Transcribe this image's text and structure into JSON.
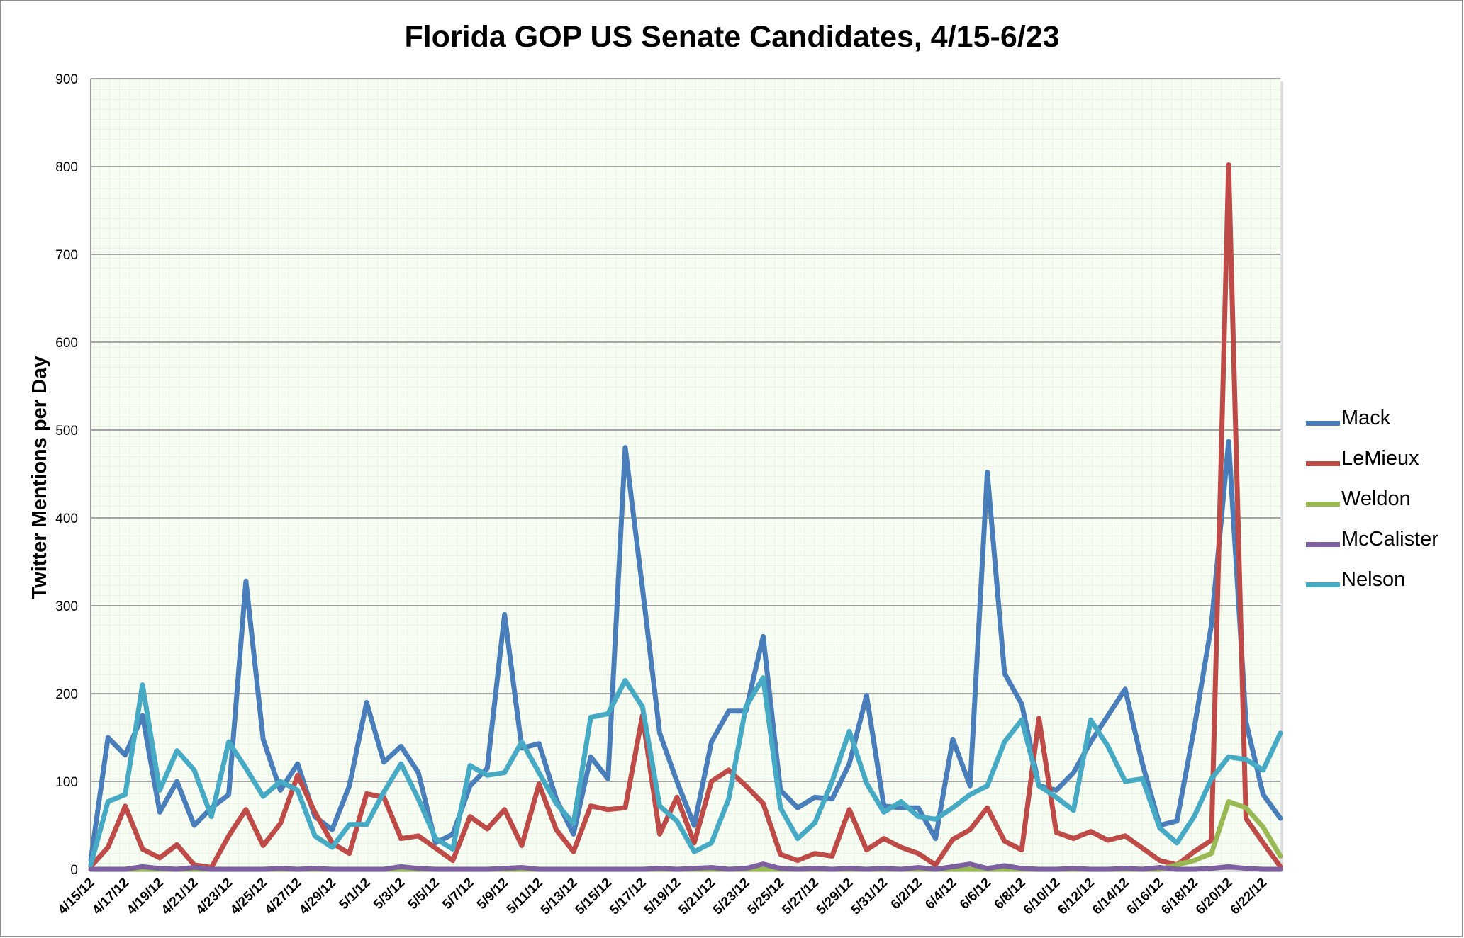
{
  "chart_data": {
    "type": "line",
    "title": "Florida GOP US Senate Candidates, 4/15-6/23",
    "xlabel": "",
    "ylabel": "Twitter Mentions per Day",
    "ylim": [
      0,
      900
    ],
    "yticks": [
      0,
      100,
      200,
      300,
      400,
      500,
      600,
      700,
      800,
      900
    ],
    "x_tick_labels": [
      "4/15/12",
      "4/17/12",
      "4/19/12",
      "4/21/12",
      "4/23/12",
      "4/25/12",
      "4/27/12",
      "4/29/12",
      "5/1/12",
      "5/3/12",
      "5/5/12",
      "5/7/12",
      "5/9/12",
      "5/11/12",
      "5/13/12",
      "5/15/12",
      "5/17/12",
      "5/19/12",
      "5/21/12",
      "5/23/12",
      "5/25/12",
      "5/27/12",
      "5/29/12",
      "5/31/12",
      "6/2/12",
      "6/4/12",
      "6/6/12",
      "6/8/12",
      "6/10/12",
      "6/12/12",
      "6/14/12",
      "6/16/12",
      "6/18/12",
      "6/20/12",
      "6/22/12"
    ],
    "x": [
      "4/15/12",
      "4/16/12",
      "4/17/12",
      "4/18/12",
      "4/19/12",
      "4/20/12",
      "4/21/12",
      "4/22/12",
      "4/23/12",
      "4/24/12",
      "4/25/12",
      "4/26/12",
      "4/27/12",
      "4/28/12",
      "4/29/12",
      "4/30/12",
      "5/1/12",
      "5/2/12",
      "5/3/12",
      "5/4/12",
      "5/5/12",
      "5/6/12",
      "5/7/12",
      "5/8/12",
      "5/9/12",
      "5/10/12",
      "5/11/12",
      "5/12/12",
      "5/13/12",
      "5/14/12",
      "5/15/12",
      "5/16/12",
      "5/17/12",
      "5/18/12",
      "5/19/12",
      "5/20/12",
      "5/21/12",
      "5/22/12",
      "5/23/12",
      "5/24/12",
      "5/25/12",
      "5/26/12",
      "5/27/12",
      "5/28/12",
      "5/29/12",
      "5/30/12",
      "5/31/12",
      "6/1/12",
      "6/2/12",
      "6/3/12",
      "6/4/12",
      "6/5/12",
      "6/6/12",
      "6/7/12",
      "6/8/12",
      "6/9/12",
      "6/10/12",
      "6/11/12",
      "6/12/12",
      "6/13/12",
      "6/14/12",
      "6/15/12",
      "6/16/12",
      "6/17/12",
      "6/18/12",
      "6/19/12",
      "6/20/12",
      "6/21/12",
      "6/22/12",
      "6/23/12"
    ],
    "series": [
      {
        "name": "Mack",
        "color": "#4a7ebb",
        "values": [
          10,
          150,
          130,
          175,
          65,
          100,
          50,
          70,
          85,
          328,
          148,
          90,
          120,
          60,
          45,
          95,
          190,
          122,
          140,
          110,
          30,
          40,
          95,
          115,
          290,
          138,
          143,
          80,
          40,
          128,
          103,
          480,
          320,
          155,
          100,
          50,
          145,
          180,
          180,
          265,
          90,
          70,
          82,
          80,
          120,
          198,
          72,
          70,
          70,
          35,
          148,
          95,
          452,
          223,
          188,
          95,
          90,
          110,
          145,
          175,
          205,
          120,
          50,
          55,
          160,
          278,
          487,
          168,
          85,
          58
        ]
      },
      {
        "name": "LeMieux",
        "color": "#be4b48",
        "values": [
          3,
          25,
          72,
          23,
          13,
          28,
          5,
          2,
          38,
          68,
          27,
          52,
          107,
          65,
          30,
          18,
          86,
          82,
          35,
          38,
          24,
          10,
          60,
          46,
          68,
          27,
          97,
          45,
          20,
          72,
          68,
          70,
          175,
          40,
          82,
          30,
          100,
          113,
          95,
          75,
          17,
          10,
          18,
          15,
          68,
          22,
          35,
          25,
          18,
          5,
          34,
          45,
          70,
          32,
          22,
          172,
          42,
          35,
          43,
          33,
          38,
          24,
          10,
          5,
          20,
          33,
          802,
          58,
          30,
          3
        ]
      },
      {
        "name": "Weldon",
        "color": "#98b954",
        "values": [
          0,
          0,
          0,
          0,
          0,
          0,
          0,
          0,
          0,
          0,
          0,
          0,
          0,
          0,
          0,
          0,
          0,
          0,
          0,
          0,
          0,
          0,
          0,
          0,
          0,
          0,
          0,
          0,
          0,
          0,
          0,
          0,
          0,
          0,
          0,
          0,
          0,
          0,
          0,
          0,
          0,
          0,
          0,
          0,
          0,
          0,
          0,
          0,
          0,
          0,
          0,
          0,
          0,
          0,
          0,
          0,
          0,
          0,
          0,
          0,
          0,
          0,
          0,
          5,
          10,
          18,
          77,
          70,
          48,
          15
        ]
      },
      {
        "name": "McCalister",
        "color": "#7d60a0",
        "values": [
          0,
          0,
          0,
          3,
          1,
          0,
          2,
          0,
          0,
          0,
          0,
          1,
          0,
          1,
          0,
          0,
          0,
          0,
          3,
          1,
          0,
          0,
          0,
          0,
          1,
          2,
          0,
          0,
          0,
          0,
          0,
          0,
          0,
          1,
          0,
          1,
          2,
          0,
          1,
          6,
          1,
          0,
          1,
          0,
          1,
          0,
          1,
          0,
          2,
          0,
          3,
          6,
          1,
          4,
          1,
          0,
          0,
          1,
          0,
          0,
          1,
          0,
          2,
          0,
          0,
          1,
          3,
          1,
          0,
          0
        ]
      },
      {
        "name": "Nelson",
        "color": "#46aac5",
        "values": [
          5,
          77,
          85,
          210,
          90,
          135,
          113,
          60,
          145,
          115,
          83,
          100,
          90,
          38,
          25,
          51,
          51,
          88,
          120,
          80,
          35,
          23,
          118,
          107,
          110,
          145,
          110,
          75,
          52,
          173,
          177,
          215,
          185,
          72,
          55,
          20,
          30,
          80,
          185,
          218,
          70,
          35,
          53,
          100,
          157,
          98,
          65,
          77,
          60,
          57,
          70,
          85,
          95,
          145,
          170,
          95,
          82,
          67,
          170,
          140,
          100,
          103,
          47,
          30,
          60,
          103,
          128,
          125,
          113,
          155
        ]
      }
    ]
  }
}
